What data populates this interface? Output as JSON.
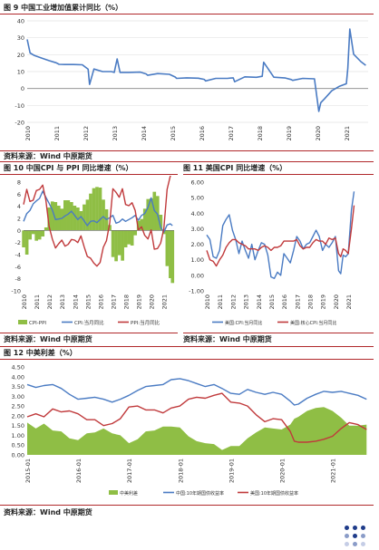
{
  "fig9": {
    "title": "图 9  中国工业增加值累计同比（%）",
    "source": "资料来源：Wind 中原期货",
    "chart_data": {
      "type": "line",
      "ylim": [
        -20,
        40
      ],
      "yticks": [
        "40",
        "30",
        "20",
        "10",
        "0",
        "-10",
        "-20"
      ],
      "xticks": [
        "2010",
        "2011",
        "2012",
        "2013",
        "2014",
        "2015",
        "2016",
        "2017",
        "2018",
        "2019",
        "2020",
        "2021"
      ],
      "series": [
        {
          "color": "#4a7bc3",
          "x": [
            2010.0,
            2010.1,
            2010.25,
            2010.5,
            2010.75,
            2011.0,
            2011.1,
            2011.3,
            2011.6,
            2011.9,
            2012.1,
            2012.15,
            2012.3,
            2012.6,
            2012.9,
            2013.0,
            2013.1,
            2013.2,
            2013.5,
            2013.9,
            2014.1,
            2014.15,
            2014.5,
            2014.9,
            2015.1,
            2015.15,
            2015.5,
            2015.9,
            2016.1,
            2016.15,
            2016.5,
            2016.9,
            2017.1,
            2017.15,
            2017.5,
            2017.9,
            2018.1,
            2018.15,
            2018.5,
            2018.9,
            2019.1,
            2019.15,
            2019.5,
            2019.9,
            2020.05,
            2020.12,
            2020.25,
            2020.5,
            2020.75,
            2021.0,
            2021.05,
            2021.12,
            2021.25,
            2021.5,
            2021.67
          ],
          "values": [
            29.0,
            21.0,
            19.5,
            18.0,
            16.5,
            15.2,
            14.3,
            14.2,
            14.2,
            14.0,
            11.4,
            2.4,
            11.5,
            10.0,
            10.0,
            9.5,
            17.5,
            9.5,
            9.5,
            9.7,
            8.6,
            7.8,
            8.8,
            8.4,
            6.8,
            6.0,
            6.3,
            6.1,
            5.4,
            4.5,
            6.0,
            6.0,
            6.3,
            4.0,
            6.9,
            6.6,
            7.2,
            15.5,
            6.7,
            6.2,
            5.3,
            4.8,
            6.0,
            5.7,
            -13.5,
            -8.4,
            -6.0,
            -1.3,
            1.2,
            2.8,
            12.0,
            35.1,
            20.3,
            15.9,
            13.7
          ]
        }
      ]
    }
  },
  "fig10": {
    "title": "图 10  中国CPI 与 PPI 同比增速（%）",
    "source": "资料来源：Wind 中原期货",
    "chart_data": {
      "type": "bar",
      "ylim": [
        -10,
        8
      ],
      "yticks": [
        "8",
        "6",
        "4",
        "2",
        "0",
        "-2",
        "-4",
        "-6",
        "-8",
        "-10"
      ],
      "xticks": [
        "2010",
        "2011",
        "2012",
        "2013",
        "2014",
        "2015",
        "2016",
        "2017",
        "2018",
        "2019",
        "2020",
        "2021"
      ],
      "legend": [
        "CPI-PPI",
        "CPI:当月同比",
        "PPI:当月同比"
      ],
      "colors": {
        "diff": "#8fbe45",
        "cpi": "#4a7bc3",
        "ppi": "#c0393b"
      },
      "x": [
        2010.0,
        2010.25,
        2010.5,
        2010.75,
        2011.0,
        2011.25,
        2011.5,
        2011.75,
        2012.0,
        2012.25,
        2012.5,
        2012.75,
        2013.0,
        2013.25,
        2013.5,
        2013.75,
        2014.0,
        2014.25,
        2014.5,
        2014.75,
        2015.0,
        2015.25,
        2015.5,
        2015.75,
        2016.0,
        2016.25,
        2016.5,
        2016.75,
        2017.0,
        2017.25,
        2017.5,
        2017.75,
        2018.0,
        2018.25,
        2018.5,
        2018.75,
        2019.0,
        2019.25,
        2019.5,
        2019.75,
        2020.0,
        2020.25,
        2020.5,
        2020.75,
        2021.0,
        2021.25,
        2021.5,
        2021.67
      ],
      "cpi": [
        1.5,
        2.8,
        3.3,
        4.4,
        4.9,
        5.3,
        6.5,
        5.5,
        4.5,
        3.4,
        1.8,
        1.9,
        2.0,
        2.4,
        2.7,
        3.2,
        2.5,
        1.8,
        2.3,
        1.6,
        0.8,
        1.5,
        1.6,
        1.3,
        1.8,
        2.3,
        1.8,
        2.1,
        2.5,
        1.2,
        1.4,
        1.9,
        1.5,
        1.8,
        2.1,
        2.5,
        1.7,
        2.5,
        2.8,
        3.8,
        5.4,
        3.3,
        2.7,
        0.5,
        -0.3,
        0.9,
        1.1,
        0.8
      ],
      "ppi": [
        4.3,
        6.8,
        4.8,
        5.0,
        6.6,
        6.8,
        7.5,
        5.0,
        0.7,
        -1.4,
        -2.9,
        -2.2,
        -1.6,
        -2.6,
        -2.3,
        -1.5,
        -1.6,
        -2.0,
        -0.9,
        -2.7,
        -4.3,
        -4.6,
        -5.4,
        -5.9,
        -5.3,
        -2.8,
        -1.7,
        1.2,
        6.9,
        6.3,
        5.5,
        6.9,
        4.3,
        4.1,
        4.6,
        3.3,
        0.1,
        0.6,
        -0.8,
        -1.4,
        0.1,
        -3.1,
        -3.0,
        -2.1,
        0.3,
        6.8,
        9.0,
        9.5
      ]
    }
  },
  "fig11": {
    "title": "图 11  美国CPI 同比增速（%）",
    "source": "资料来源：Wind 中原期货",
    "chart_data": {
      "type": "line",
      "ylim": [
        -1,
        6
      ],
      "yticks": [
        "6.00",
        "5.00",
        "4.00",
        "3.00",
        "2.00",
        "1.00",
        "0.00",
        "-1.00"
      ],
      "xticks": [
        "2010",
        "2011",
        "2012",
        "2013",
        "2014",
        "2015",
        "2016",
        "2017",
        "2018",
        "2019",
        "2020",
        "2021"
      ],
      "legend": [
        "美国:CPI:当月同比",
        "美国:核心CPI:当月同比"
      ],
      "series": [
        {
          "color": "#4a7bc3",
          "x": [
            2010.0,
            2010.25,
            2010.5,
            2010.75,
            2011.0,
            2011.25,
            2011.5,
            2011.75,
            2012.0,
            2012.25,
            2012.5,
            2012.75,
            2013.0,
            2013.25,
            2013.5,
            2013.75,
            2014.0,
            2014.25,
            2014.5,
            2014.75,
            2015.0,
            2015.25,
            2015.5,
            2015.75,
            2016.0,
            2016.25,
            2016.5,
            2016.75,
            2017.0,
            2017.25,
            2017.5,
            2017.75,
            2018.0,
            2018.25,
            2018.5,
            2018.75,
            2019.0,
            2019.25,
            2019.5,
            2019.75,
            2020.0,
            2020.25,
            2020.42,
            2020.6,
            2020.8,
            2021.0,
            2021.25,
            2021.45
          ],
          "values": [
            2.6,
            2.3,
            1.2,
            1.1,
            1.6,
            3.2,
            3.6,
            3.9,
            2.9,
            2.3,
            1.4,
            2.2,
            1.6,
            1.1,
            2.0,
            1.0,
            1.6,
            2.1,
            2.0,
            1.3,
            -0.1,
            -0.2,
            0.2,
            0.0,
            1.4,
            1.1,
            0.8,
            1.6,
            2.5,
            2.2,
            1.7,
            2.0,
            2.1,
            2.5,
            2.9,
            2.5,
            1.6,
            2.0,
            1.8,
            2.1,
            2.5,
            0.3,
            0.1,
            1.3,
            1.2,
            1.4,
            4.2,
            5.4
          ]
        },
        {
          "color": "#c0393b",
          "x": [
            2010.0,
            2010.25,
            2010.5,
            2010.75,
            2011.0,
            2011.25,
            2011.5,
            2011.75,
            2012.0,
            2012.25,
            2012.5,
            2012.75,
            2013.0,
            2013.25,
            2013.5,
            2013.75,
            2014.0,
            2014.25,
            2014.5,
            2014.75,
            2015.0,
            2015.25,
            2015.5,
            2015.75,
            2016.0,
            2016.25,
            2016.5,
            2016.75,
            2017.0,
            2017.25,
            2017.5,
            2017.75,
            2018.0,
            2018.25,
            2018.5,
            2018.75,
            2019.0,
            2019.25,
            2019.5,
            2019.75,
            2020.0,
            2020.25,
            2020.42,
            2020.6,
            2020.8,
            2021.0,
            2021.25,
            2021.45
          ],
          "values": [
            1.6,
            1.0,
            0.9,
            0.6,
            1.0,
            1.3,
            1.8,
            2.1,
            2.3,
            2.3,
            2.1,
            2.0,
            1.9,
            1.7,
            1.7,
            1.7,
            1.6,
            1.8,
            1.9,
            1.8,
            1.6,
            1.8,
            1.8,
            1.9,
            2.2,
            2.2,
            2.2,
            2.2,
            2.3,
            1.9,
            1.7,
            1.8,
            1.8,
            2.1,
            2.3,
            2.2,
            2.2,
            2.0,
            2.4,
            2.3,
            2.4,
            1.4,
            1.2,
            1.7,
            1.6,
            1.4,
            3.0,
            4.5
          ]
        }
      ]
    }
  },
  "fig12": {
    "title": "图 12  中美利差（%）",
    "source": "资料来源：Wind 中原期货",
    "chart_data": {
      "type": "area",
      "ylim": [
        0,
        4.5
      ],
      "yticks": [
        "4.50",
        "4.00",
        "3.50",
        "3.00",
        "2.50",
        "2.00",
        "1.50",
        "1.00",
        "0.50",
        "0.00"
      ],
      "xticks": [
        "2015-01",
        "2016-01",
        "2017-01",
        "2018-01",
        "2019-01",
        "2020-01",
        "2021-01"
      ],
      "legend": [
        "中美利差",
        "中国:10年期国债收益率",
        "美国:10年期国债收益率"
      ],
      "colors": {
        "spread": "#8fbe45",
        "cn": "#4a7bc3",
        "us": "#c0393b"
      },
      "x": [
        2015.0,
        2015.17,
        2015.33,
        2015.5,
        2015.67,
        2015.83,
        2016.0,
        2016.17,
        2016.33,
        2016.5,
        2016.67,
        2016.83,
        2017.0,
        2017.17,
        2017.33,
        2017.5,
        2017.67,
        2017.83,
        2018.0,
        2018.17,
        2018.33,
        2018.5,
        2018.67,
        2018.83,
        2019.0,
        2019.17,
        2019.33,
        2019.5,
        2019.67,
        2019.83,
        2020.0,
        2020.17,
        2020.25,
        2020.33,
        2020.5,
        2020.67,
        2020.83,
        2021.0,
        2021.17,
        2021.33,
        2021.5,
        2021.67
      ],
      "cn": [
        3.6,
        3.45,
        3.55,
        3.6,
        3.4,
        3.1,
        2.85,
        2.9,
        2.95,
        2.85,
        2.7,
        2.85,
        3.05,
        3.3,
        3.5,
        3.55,
        3.6,
        3.85,
        3.9,
        3.8,
        3.65,
        3.5,
        3.6,
        3.4,
        3.15,
        3.1,
        3.35,
        3.2,
        3.1,
        3.2,
        3.1,
        2.75,
        2.55,
        2.6,
        2.9,
        3.1,
        3.25,
        3.2,
        3.25,
        3.15,
        3.05,
        2.85
      ],
      "us": [
        1.95,
        2.1,
        1.95,
        2.35,
        2.2,
        2.25,
        2.1,
        1.8,
        1.8,
        1.5,
        1.6,
        1.85,
        2.45,
        2.5,
        2.3,
        2.3,
        2.15,
        2.4,
        2.5,
        2.85,
        2.95,
        2.9,
        3.05,
        3.15,
        2.7,
        2.65,
        2.5,
        2.05,
        1.7,
        1.85,
        1.8,
        1.2,
        0.7,
        0.65,
        0.65,
        0.7,
        0.8,
        0.95,
        1.35,
        1.65,
        1.55,
        1.3
      ]
    }
  },
  "logo_colors": [
    "#1f3c8a",
    "#8a9cc8",
    "#c5cde6"
  ]
}
